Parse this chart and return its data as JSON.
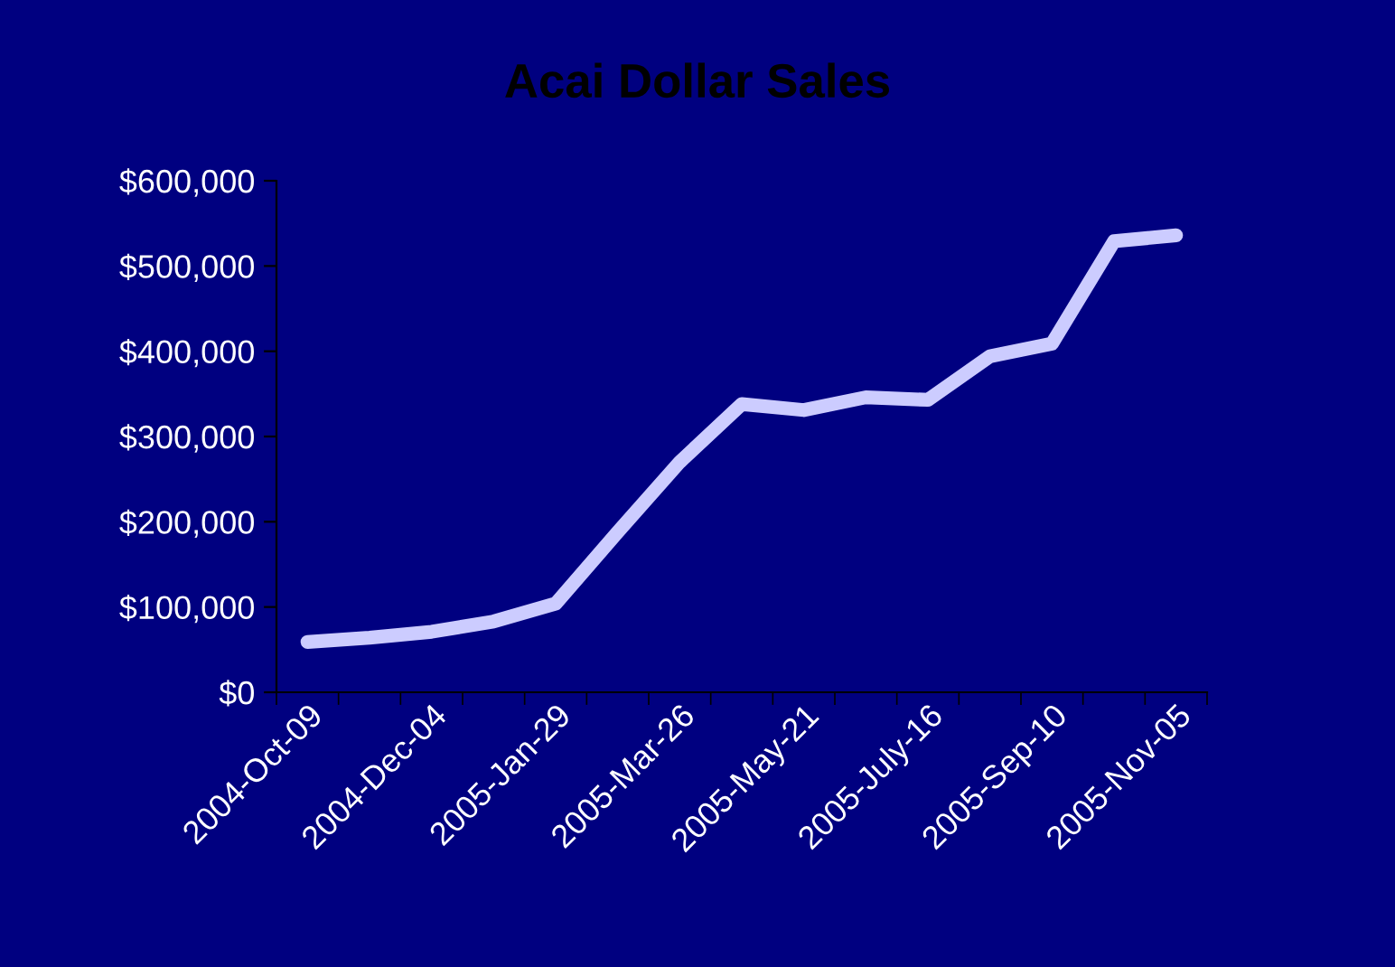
{
  "chart_data": {
    "type": "line",
    "title": "Acai Dollar Sales",
    "categories": [
      "2004-Oct-09",
      null,
      "2004-Dec-04",
      null,
      "2005-Jan-29",
      null,
      "2005-Mar-26",
      null,
      "2005-May-21",
      null,
      "2005-July-16",
      null,
      "2005-Sep-10",
      null,
      "2005-Nov-05"
    ],
    "series": [
      {
        "color": "#ccccff",
        "values": [
          59000,
          64000,
          71000,
          83000,
          104000,
          188000,
          270000,
          338000,
          331000,
          346000,
          343000,
          394000,
          409000,
          529000,
          536000
        ]
      }
    ],
    "ylim": [
      0,
      600000
    ],
    "yticks": [
      {
        "value": 0,
        "label": "$0"
      },
      {
        "value": 100000,
        "label": "$100,000"
      },
      {
        "value": 200000,
        "label": "$200,000"
      },
      {
        "value": 300000,
        "label": "$300,000"
      },
      {
        "value": 400000,
        "label": "$400,000"
      },
      {
        "value": 500000,
        "label": "$500,000"
      },
      {
        "value": 600000,
        "label": "$600,000"
      }
    ],
    "grid": false,
    "marker": "none",
    "line_style": "solid"
  }
}
